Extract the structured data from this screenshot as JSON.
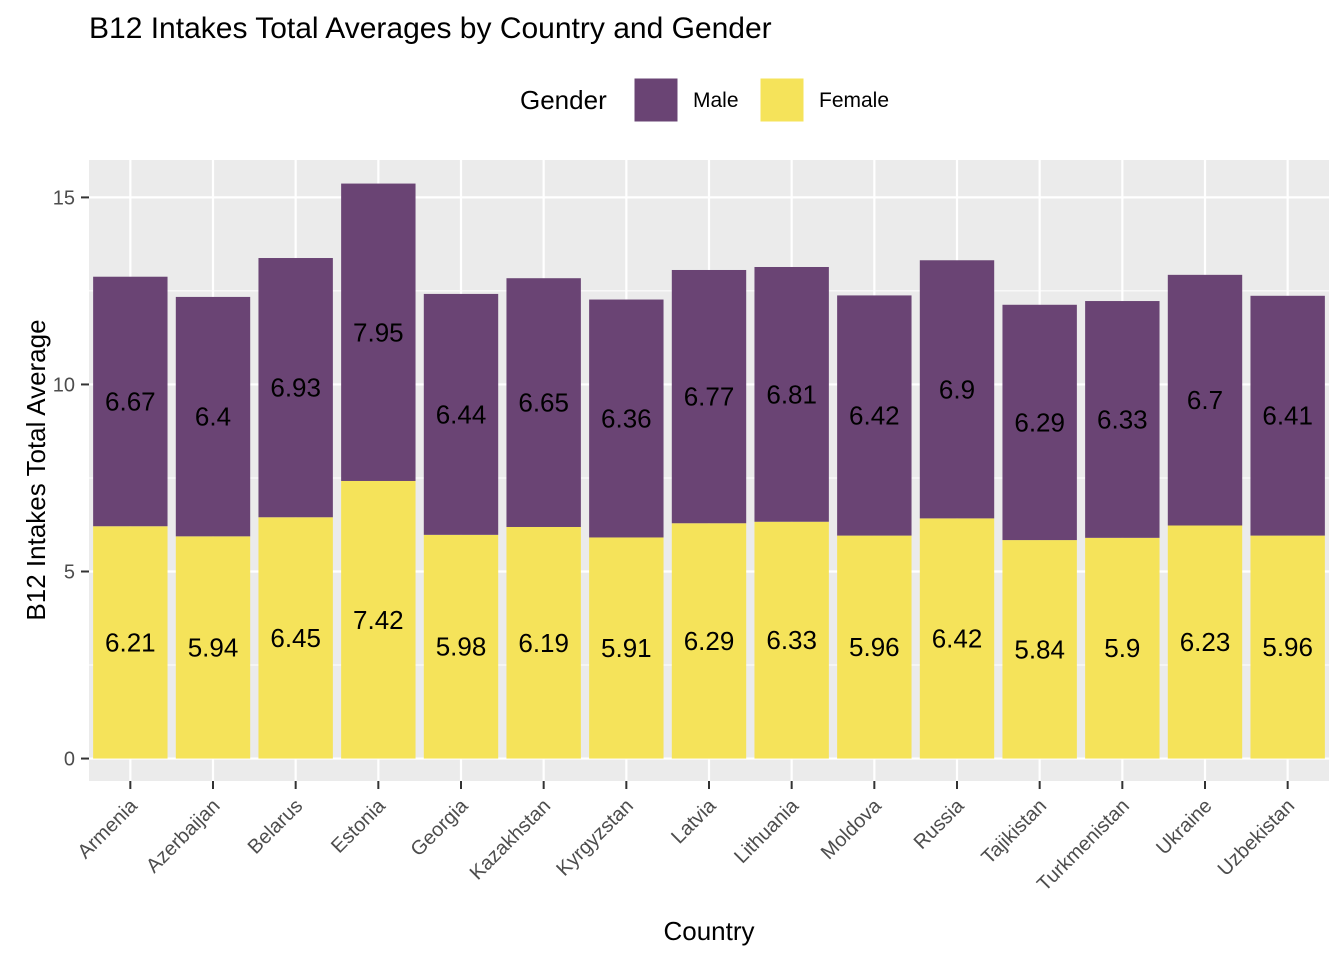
{
  "chart_data": {
    "type": "bar",
    "stacked": true,
    "title": "B12 Intakes Total Averages by Country and Gender",
    "xlabel": "Country",
    "ylabel": "B12 Intakes Total Average",
    "ylim": [
      -0.6,
      16.0
    ],
    "yticks": [
      0,
      5,
      10,
      15
    ],
    "grid": true,
    "legend": {
      "title": "Gender",
      "position": "top",
      "entries": [
        {
          "name": "Male",
          "color": "#440154"
        },
        {
          "name": "Female",
          "color": "#FDE725"
        }
      ]
    },
    "categories": [
      "Armenia",
      "Azerbaijan",
      "Belarus",
      "Estonia",
      "Georgia",
      "Kazakhstan",
      "Kyrgyzstan",
      "Latvia",
      "Lithuania",
      "Moldova",
      "Russia",
      "Tajikistan",
      "Turkmenistan",
      "Ukraine",
      "Uzbekistan"
    ],
    "series": [
      {
        "name": "Female",
        "color": "#FDE725",
        "values": [
          6.21,
          5.94,
          6.45,
          7.42,
          5.98,
          6.19,
          5.91,
          6.29,
          6.33,
          5.96,
          6.42,
          5.84,
          5.9,
          6.23,
          5.96
        ]
      },
      {
        "name": "Male",
        "color": "#440154",
        "values": [
          6.67,
          6.4,
          6.93,
          7.95,
          6.44,
          6.65,
          6.36,
          6.77,
          6.81,
          6.42,
          6.9,
          6.29,
          6.33,
          6.7,
          6.41
        ]
      }
    ]
  }
}
